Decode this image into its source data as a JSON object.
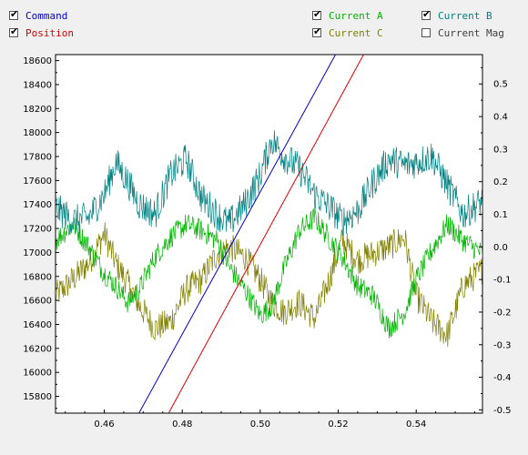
{
  "legend": [
    {
      "id": "command",
      "label": "Command",
      "checked": true,
      "color": "#0000cc"
    },
    {
      "id": "position",
      "label": "Position",
      "checked": true,
      "color": "#dd0000"
    },
    {
      "id": "current_a",
      "label": "Current A",
      "checked": true,
      "color": "#00b400"
    },
    {
      "id": "current_c",
      "label": "Current C",
      "checked": true,
      "color": "#808000"
    },
    {
      "id": "current_b",
      "label": "Current B",
      "checked": true,
      "color": "#008080"
    },
    {
      "id": "current_mag",
      "label": "Current Mag",
      "checked": false,
      "color": "#404040"
    }
  ],
  "chart_data": {
    "type": "line",
    "title": "",
    "xlabel": "",
    "ylabel": "",
    "x_ticks": [
      "0.46",
      "0.48",
      "0.50",
      "0.52",
      "0.54"
    ],
    "y_left_ticks": [
      "15800",
      "16000",
      "16200",
      "16400",
      "16600",
      "16800",
      "17000",
      "17200",
      "17400",
      "17600",
      "17800",
      "18000",
      "18200",
      "18400",
      "18600"
    ],
    "y_right_ticks": [
      "-0.5",
      "-0.4",
      "-0.3",
      "-0.2",
      "-0.1",
      "0.0",
      "0.1",
      "0.2",
      "0.3",
      "0.4",
      "0.5"
    ],
    "xlim": [
      0.4475,
      0.557
    ],
    "ylim_left": [
      15660,
      18650
    ],
    "ylim_right": [
      -0.51,
      0.59
    ],
    "grid": false,
    "series": [
      {
        "name": "Command",
        "axis": "left",
        "color": "#0000cc",
        "x": [
          0.4689,
          0.5193
        ],
        "y": [
          15660,
          18650
        ]
      },
      {
        "name": "Position",
        "axis": "left",
        "color": "#dd0000",
        "x": [
          0.4765,
          0.5265
        ],
        "y": [
          15660,
          18650
        ]
      },
      {
        "name": "Current B",
        "axis": "right",
        "color": "#008080",
        "x": [
          0.4475,
          0.452,
          0.456,
          0.46,
          0.463,
          0.466,
          0.469,
          0.473,
          0.477,
          0.481,
          0.485,
          0.489,
          0.492,
          0.496,
          0.5,
          0.503,
          0.506,
          0.51,
          0.514,
          0.518,
          0.521,
          0.525,
          0.529,
          0.533,
          0.537,
          0.54,
          0.544,
          0.548,
          0.552,
          0.557
        ],
        "y": [
          0.12,
          0.08,
          0.09,
          0.16,
          0.26,
          0.2,
          0.13,
          0.1,
          0.22,
          0.27,
          0.15,
          0.1,
          0.07,
          0.13,
          0.22,
          0.33,
          0.28,
          0.24,
          0.16,
          0.12,
          0.08,
          0.11,
          0.2,
          0.27,
          0.25,
          0.26,
          0.28,
          0.19,
          0.1,
          0.14
        ]
      },
      {
        "name": "Current A",
        "axis": "right",
        "color": "#00b400",
        "x": [
          0.4475,
          0.452,
          0.456,
          0.46,
          0.463,
          0.466,
          0.469,
          0.473,
          0.477,
          0.481,
          0.485,
          0.489,
          0.492,
          0.496,
          0.5,
          0.503,
          0.506,
          0.51,
          0.514,
          0.518,
          0.521,
          0.525,
          0.529,
          0.533,
          0.537,
          0.54,
          0.544,
          0.548,
          0.552,
          0.557
        ],
        "y": [
          0.02,
          0.07,
          0.0,
          -0.08,
          -0.12,
          -0.17,
          -0.13,
          -0.03,
          0.03,
          0.07,
          0.05,
          0.02,
          -0.06,
          -0.13,
          -0.21,
          -0.18,
          -0.07,
          0.05,
          0.09,
          0.02,
          -0.03,
          -0.12,
          -0.15,
          -0.25,
          -0.2,
          -0.1,
          -0.01,
          0.07,
          0.02,
          -0.02
        ]
      },
      {
        "name": "Current C",
        "axis": "right",
        "color": "#808000",
        "x": [
          0.4475,
          0.452,
          0.456,
          0.46,
          0.463,
          0.466,
          0.469,
          0.473,
          0.477,
          0.481,
          0.485,
          0.489,
          0.492,
          0.496,
          0.5,
          0.503,
          0.506,
          0.51,
          0.514,
          0.518,
          0.521,
          0.525,
          0.529,
          0.533,
          0.537,
          0.54,
          0.544,
          0.548,
          0.552,
          0.557
        ],
        "y": [
          -0.15,
          -0.1,
          -0.05,
          0.04,
          -0.05,
          -0.11,
          -0.18,
          -0.25,
          -0.23,
          -0.13,
          -0.1,
          -0.02,
          0.0,
          -0.03,
          -0.1,
          -0.17,
          -0.2,
          -0.17,
          -0.22,
          -0.09,
          0.02,
          -0.04,
          -0.02,
          0.0,
          0.03,
          -0.15,
          -0.23,
          -0.27,
          -0.12,
          -0.07
        ]
      }
    ]
  }
}
